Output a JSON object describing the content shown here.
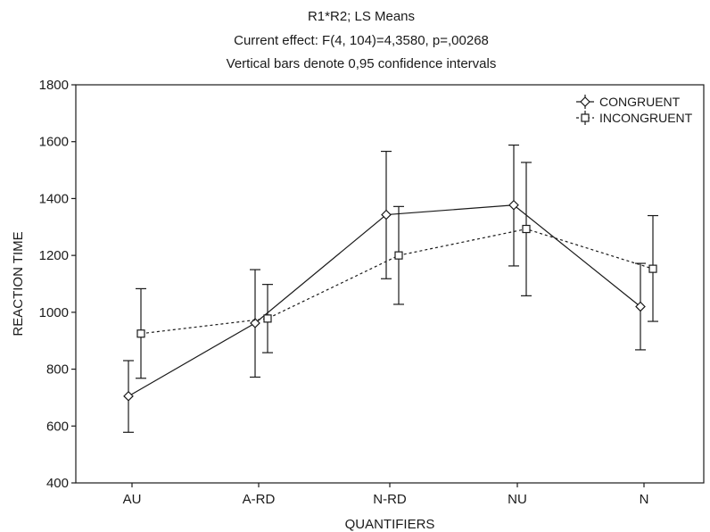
{
  "chart_data": {
    "type": "line",
    "title": [
      "R1*R2; LS Means",
      "Current effect: F(4, 104)=4,3580, p=,00268",
      "Vertical bars denote 0,95 confidence intervals"
    ],
    "xlabel": "QUANTIFIERS",
    "ylabel": "REACTION TIME",
    "categories": [
      "AU",
      "A-RD",
      "N-RD",
      "NU",
      "N"
    ],
    "ylim": [
      400,
      1800
    ],
    "yticks": [
      400,
      600,
      800,
      1000,
      1200,
      1400,
      1600,
      1800
    ],
    "grid": false,
    "legend_position": "top-right",
    "series": [
      {
        "name": "CONGRUENT",
        "marker": "diamond",
        "line_style": "solid",
        "values": [
          705,
          962,
          1343,
          1377,
          1020
        ],
        "ci_lower": [
          578,
          772,
          1118,
          1163,
          868
        ],
        "ci_upper": [
          830,
          1150,
          1566,
          1588,
          1172
        ]
      },
      {
        "name": "INCONGRUENT",
        "marker": "square",
        "line_style": "dashed",
        "values": [
          925,
          978,
          1200,
          1293,
          1153
        ],
        "ci_lower": [
          768,
          858,
          1028,
          1058,
          968
        ],
        "ci_upper": [
          1083,
          1098,
          1372,
          1527,
          1340
        ]
      }
    ],
    "colors": {
      "line": "#1a1a1a",
      "background": "#ffffff",
      "marker_fill": "#ffffff"
    }
  }
}
